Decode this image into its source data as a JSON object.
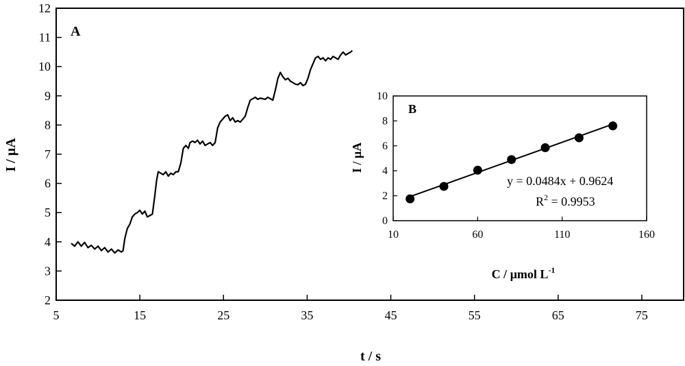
{
  "chart_data": [
    {
      "panel": "A",
      "type": "line",
      "xlabel": "t / s",
      "ylabel": "I / µA",
      "xlim": [
        5,
        80
      ],
      "ylim": [
        2,
        12
      ],
      "xticks": [
        5,
        15,
        25,
        35,
        45,
        55,
        65,
        75
      ],
      "yticks": [
        2,
        3,
        4,
        5,
        6,
        7,
        8,
        9,
        10,
        11,
        12
      ],
      "grid": false,
      "series": [
        {
          "x": [
            6.8,
            7.2,
            7.6,
            8.0,
            8.4,
            8.8,
            9.2,
            9.6,
            10.0,
            10.4,
            10.8,
            11.2,
            11.6,
            12.0,
            12.4,
            12.8,
            13.0,
            13.2,
            13.5,
            13.8,
            14.1,
            14.4,
            14.7,
            15.0,
            15.3,
            15.6,
            15.9,
            16.2,
            16.5,
            16.8,
            17.0,
            17.2,
            17.5,
            17.8,
            18.1,
            18.4,
            18.7,
            19.0,
            19.3,
            19.6,
            19.9,
            20.2,
            20.5,
            20.8,
            21.0,
            21.3,
            21.6,
            21.9,
            22.2,
            22.5,
            22.8,
            23.1,
            23.4,
            23.7,
            24.0,
            24.3,
            24.6,
            24.9,
            25.2,
            25.5,
            25.8,
            26.1,
            26.4,
            26.7,
            27.0,
            27.3,
            27.6,
            27.9,
            28.2,
            28.5,
            28.8,
            29.1,
            29.4,
            29.7,
            30.0,
            30.3,
            30.6,
            30.9,
            31.2,
            31.5,
            31.8,
            32.1,
            32.4,
            32.7,
            33.0,
            33.3,
            33.6,
            33.9,
            34.2,
            34.5,
            34.8,
            35.1,
            35.4,
            35.7,
            36.0,
            36.3,
            36.6,
            36.9,
            37.2,
            37.5,
            37.8,
            38.1,
            38.4,
            38.7,
            39.0,
            39.3,
            39.6,
            39.9,
            40.2,
            40.4
          ],
          "y": [
            3.95,
            3.85,
            4.0,
            3.85,
            3.98,
            3.8,
            3.88,
            3.75,
            3.85,
            3.7,
            3.8,
            3.65,
            3.75,
            3.62,
            3.72,
            3.65,
            3.7,
            4.1,
            4.45,
            4.6,
            4.85,
            4.95,
            5.0,
            5.08,
            4.95,
            5.05,
            4.85,
            4.9,
            4.95,
            5.6,
            6.1,
            6.4,
            6.35,
            6.3,
            6.4,
            6.25,
            6.35,
            6.3,
            6.4,
            6.4,
            6.7,
            7.2,
            7.3,
            7.2,
            7.4,
            7.45,
            7.4,
            7.48,
            7.35,
            7.45,
            7.3,
            7.35,
            7.4,
            7.3,
            7.4,
            7.9,
            8.1,
            8.2,
            8.3,
            8.35,
            8.15,
            8.25,
            8.1,
            8.15,
            8.1,
            8.2,
            8.3,
            8.6,
            8.85,
            8.9,
            8.95,
            8.88,
            8.92,
            8.9,
            8.88,
            8.95,
            8.9,
            8.85,
            9.2,
            9.6,
            9.8,
            9.65,
            9.55,
            9.6,
            9.5,
            9.45,
            9.4,
            9.38,
            9.45,
            9.35,
            9.4,
            9.6,
            9.9,
            10.1,
            10.3,
            10.35,
            10.25,
            10.3,
            10.2,
            10.3,
            10.25,
            10.35,
            10.3,
            10.25,
            10.4,
            10.5,
            10.4,
            10.45,
            10.5,
            10.55
          ]
        }
      ]
    },
    {
      "panel": "B",
      "type": "scatter",
      "xlabel": "C / µmol L",
      "xlabel_sup": "-1",
      "ylabel": "I / µA",
      "xlim": [
        10,
        160
      ],
      "ylim": [
        0,
        10
      ],
      "xticks": [
        10,
        60,
        110,
        160
      ],
      "yticks": [
        0,
        2,
        4,
        6,
        8,
        10
      ],
      "grid": false,
      "series": [
        {
          "x": [
            20,
            40,
            60,
            80,
            100,
            120,
            140
          ],
          "y": [
            1.75,
            2.75,
            4.05,
            4.9,
            5.85,
            6.65,
            7.6
          ]
        }
      ],
      "fit": {
        "slope": 0.0484,
        "intercept": 0.9624
      },
      "equation": "y = 0.0484x + 0.9624",
      "r2_label": "R",
      "r2_sup": "2",
      "r2_value": " = 0.9953"
    }
  ]
}
